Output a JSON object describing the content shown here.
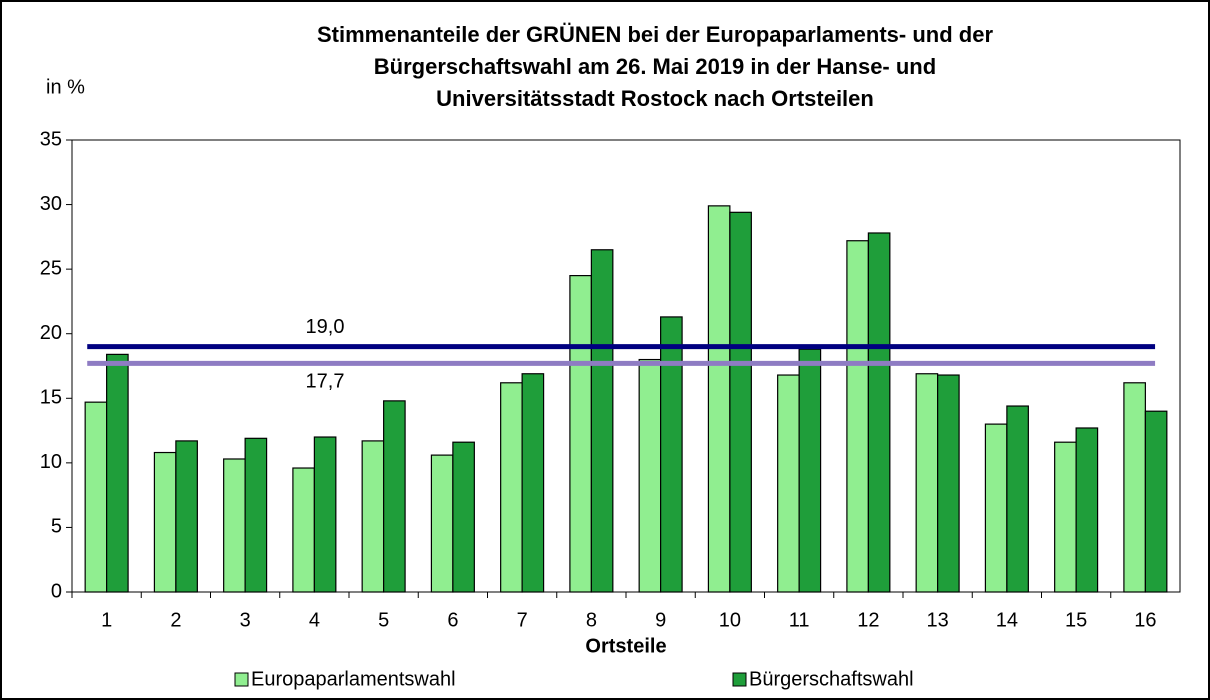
{
  "chart_data": {
    "type": "bar",
    "title": [
      "Stimmenanteile der GRÜNEN bei der Europaparlaments- und der",
      "Bürgerschaftswahl am 26. Mai 2019 in der Hanse- und",
      "Universitätsstadt Rostock nach Ortsteilen"
    ],
    "y_label": "in %",
    "x_label": "Ortsteile",
    "categories": [
      "1",
      "2",
      "3",
      "4",
      "5",
      "6",
      "7",
      "8",
      "9",
      "10",
      "11",
      "12",
      "13",
      "14",
      "15",
      "16"
    ],
    "series": [
      {
        "name": "Europaparlamentswahl",
        "color": "#90ee90",
        "values": [
          14.7,
          10.8,
          10.3,
          9.6,
          11.7,
          10.6,
          16.2,
          24.5,
          18.0,
          29.9,
          16.8,
          27.2,
          16.9,
          13.0,
          11.6,
          16.2
        ]
      },
      {
        "name": "Bürgerschaftswahl",
        "color": "#1f9e3a",
        "values": [
          18.4,
          11.7,
          11.9,
          12.0,
          14.8,
          11.6,
          16.9,
          26.5,
          21.3,
          29.4,
          18.8,
          27.8,
          16.8,
          14.4,
          12.7,
          14.0
        ]
      }
    ],
    "reference_lines": [
      {
        "value": 19.0,
        "label": "19,0",
        "color": "#000080"
      },
      {
        "value": 17.7,
        "label": "17,7",
        "color": "#8e7cc3"
      }
    ],
    "ylim": [
      0,
      35
    ],
    "yticks": [
      0,
      5,
      10,
      15,
      20,
      25,
      30,
      35
    ],
    "grid": false,
    "legend": "bottom"
  }
}
